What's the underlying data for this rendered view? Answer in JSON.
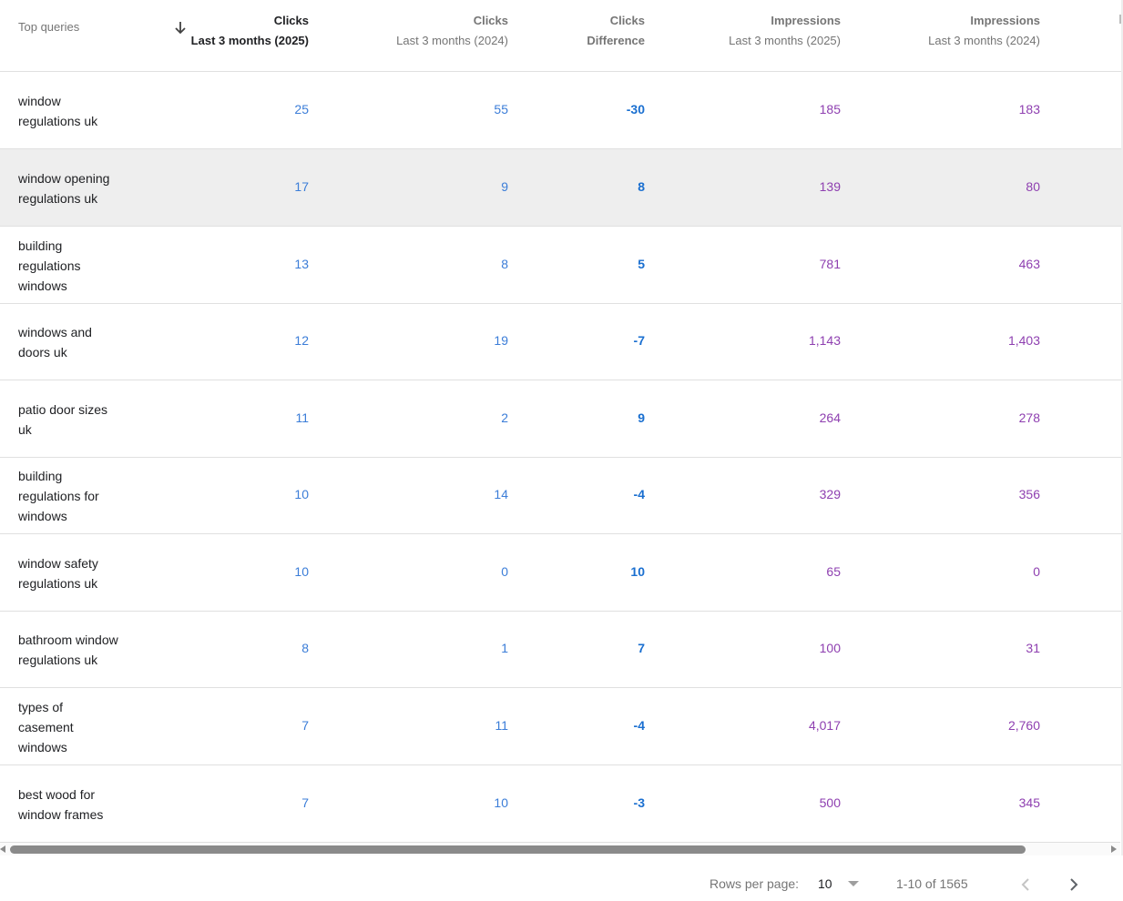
{
  "table": {
    "columns": [
      {
        "key": "query",
        "label": "Top queries"
      },
      {
        "key": "clicks_2025",
        "line1": "Clicks",
        "line2": "Last 3 months (2025)",
        "sorted": "descending"
      },
      {
        "key": "clicks_2024",
        "line1": "Clicks",
        "line2": "Last 3 months (2024)"
      },
      {
        "key": "clicks_diff",
        "line1": "Clicks",
        "line2": "Difference"
      },
      {
        "key": "impr_2025",
        "line1": "Impressions",
        "line2": "Last 3 months (2025)"
      },
      {
        "key": "impr_2024",
        "line1": "Impressions",
        "line2": "Last 3 months (2024)"
      }
    ],
    "sort_icon": "arrow-down-icon",
    "rows": [
      {
        "query": "window regulations uk",
        "clicks_2025": "25",
        "clicks_2024": "55",
        "clicks_diff": "-30",
        "impr_2025": "185",
        "impr_2024": "183"
      },
      {
        "query": "window opening regulations uk",
        "clicks_2025": "17",
        "clicks_2024": "9",
        "clicks_diff": "8",
        "impr_2025": "139",
        "impr_2024": "80"
      },
      {
        "query": "building regulations windows",
        "clicks_2025": "13",
        "clicks_2024": "8",
        "clicks_diff": "5",
        "impr_2025": "781",
        "impr_2024": "463"
      },
      {
        "query": "windows and doors uk",
        "clicks_2025": "12",
        "clicks_2024": "19",
        "clicks_diff": "-7",
        "impr_2025": "1,143",
        "impr_2024": "1,403"
      },
      {
        "query": "patio door sizes uk",
        "clicks_2025": "11",
        "clicks_2024": "2",
        "clicks_diff": "9",
        "impr_2025": "264",
        "impr_2024": "278"
      },
      {
        "query": "building regulations for windows",
        "clicks_2025": "10",
        "clicks_2024": "14",
        "clicks_diff": "-4",
        "impr_2025": "329",
        "impr_2024": "356"
      },
      {
        "query": "window safety regulations uk",
        "clicks_2025": "10",
        "clicks_2024": "0",
        "clicks_diff": "10",
        "impr_2025": "65",
        "impr_2024": "0"
      },
      {
        "query": "bathroom window regulations uk",
        "clicks_2025": "8",
        "clicks_2024": "1",
        "clicks_diff": "7",
        "impr_2025": "100",
        "impr_2024": "31"
      },
      {
        "query": "types of casement windows",
        "clicks_2025": "7",
        "clicks_2024": "11",
        "clicks_diff": "-4",
        "impr_2025": "4,017",
        "impr_2024": "2,760"
      },
      {
        "query": "best wood for window frames",
        "clicks_2025": "7",
        "clicks_2024": "10",
        "clicks_diff": "-3",
        "impr_2025": "500",
        "impr_2024": "345"
      }
    ]
  },
  "pagination": {
    "rows_per_page_label": "Rows per page:",
    "rows_per_page_value": "10",
    "range_text": "1-10 of 1565",
    "prev_icon": "chevron-left-icon",
    "next_icon": "chevron-right-icon"
  },
  "colors": {
    "clicks": "#3b7dd8",
    "impressions": "#8e3fb0",
    "hover_row": "#eeeeee",
    "divider": "#e0e0e0"
  }
}
